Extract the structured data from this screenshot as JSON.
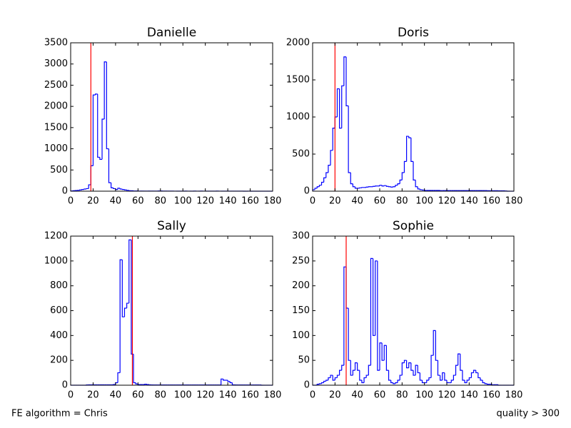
{
  "chart_data": [
    {
      "type": "histogram",
      "title": "Danielle",
      "color": "#0000ff",
      "bins": [
        0,
        2,
        4,
        6,
        8,
        10,
        12,
        14,
        16,
        18,
        20,
        22,
        24,
        26,
        28,
        30,
        32,
        34,
        36,
        38,
        40,
        42,
        44,
        46,
        48,
        50,
        52,
        54,
        56,
        58,
        60,
        62,
        64,
        66,
        68,
        70,
        72,
        74,
        76,
        78,
        80,
        82,
        84,
        86,
        88,
        90,
        92,
        94,
        96,
        98,
        100,
        102,
        104,
        106,
        108,
        110,
        112,
        114,
        116,
        118,
        120,
        122,
        124,
        126,
        128,
        130,
        132,
        134,
        136,
        138,
        140,
        142,
        144,
        146,
        148,
        150,
        152,
        154,
        156,
        158,
        160,
        162,
        164,
        166,
        168,
        170,
        172,
        174,
        176,
        178,
        180
      ],
      "counts": [
        5,
        10,
        15,
        20,
        30,
        40,
        50,
        60,
        150,
        600,
        2270,
        2290,
        800,
        750,
        1700,
        3050,
        1000,
        200,
        80,
        60,
        40,
        70,
        50,
        40,
        30,
        20,
        10,
        10,
        5,
        5,
        3,
        3,
        2,
        2,
        2,
        3,
        2,
        2,
        2,
        5,
        5,
        3,
        2,
        2,
        2,
        2,
        1,
        1,
        1,
        1,
        1,
        2,
        1,
        1,
        1,
        2,
        1,
        1,
        2,
        1,
        1,
        1,
        1,
        1,
        1,
        2,
        1,
        1,
        1,
        1,
        1,
        1,
        1,
        1,
        1,
        1,
        1,
        0,
        0,
        1,
        0,
        0,
        0,
        0,
        0,
        0,
        0,
        0,
        0,
        0
      ],
      "vline": {
        "value": 18,
        "color": "#ff0000"
      },
      "xlim": [
        0,
        180
      ],
      "xticks": [
        0,
        20,
        40,
        60,
        80,
        100,
        120,
        140,
        160,
        180
      ],
      "ylim": [
        0,
        3500
      ],
      "yticks": [
        0,
        500,
        1000,
        1500,
        2000,
        2500,
        3000,
        3500
      ]
    },
    {
      "type": "histogram",
      "title": "Doris",
      "color": "#0000ff",
      "bins": [
        0,
        2,
        4,
        6,
        8,
        10,
        12,
        14,
        16,
        18,
        20,
        22,
        24,
        26,
        28,
        30,
        32,
        34,
        36,
        38,
        40,
        42,
        44,
        46,
        48,
        50,
        52,
        54,
        56,
        58,
        60,
        62,
        64,
        66,
        68,
        70,
        72,
        74,
        76,
        78,
        80,
        82,
        84,
        86,
        88,
        90,
        92,
        94,
        96,
        98,
        100,
        102,
        104,
        106,
        108,
        110,
        112,
        114,
        116,
        118,
        120,
        122,
        124,
        126,
        128,
        130,
        132,
        134,
        136,
        138,
        140,
        142,
        144,
        146,
        148,
        150,
        152,
        154,
        156,
        158,
        160,
        162,
        164,
        166,
        168,
        170,
        172,
        174,
        176,
        178,
        180
      ],
      "counts": [
        20,
        40,
        60,
        80,
        120,
        180,
        250,
        350,
        550,
        850,
        1000,
        1380,
        850,
        1420,
        1810,
        1150,
        250,
        100,
        60,
        40,
        40,
        45,
        50,
        50,
        55,
        60,
        60,
        65,
        70,
        70,
        80,
        70,
        75,
        65,
        60,
        55,
        60,
        80,
        100,
        150,
        250,
        400,
        740,
        720,
        400,
        150,
        60,
        30,
        20,
        15,
        10,
        10,
        10,
        10,
        10,
        10,
        10,
        8,
        8,
        8,
        8,
        8,
        8,
        8,
        8,
        8,
        8,
        8,
        8,
        8,
        8,
        8,
        8,
        8,
        8,
        8,
        8,
        8,
        6,
        6,
        6,
        6,
        6,
        5,
        5,
        5,
        3,
        0,
        0,
        0
      ],
      "vline": {
        "value": 20,
        "color": "#ff0000"
      },
      "xlim": [
        0,
        180
      ],
      "xticks": [
        0,
        20,
        40,
        60,
        80,
        100,
        120,
        140,
        160,
        180
      ],
      "ylim": [
        0,
        2000
      ],
      "yticks": [
        0,
        500,
        1000,
        1500,
        2000
      ]
    },
    {
      "type": "histogram",
      "title": "Sally",
      "color": "#0000ff",
      "bins": [
        0,
        2,
        4,
        6,
        8,
        10,
        12,
        14,
        16,
        18,
        20,
        22,
        24,
        26,
        28,
        30,
        32,
        34,
        36,
        38,
        40,
        42,
        44,
        46,
        48,
        50,
        52,
        54,
        56,
        58,
        60,
        62,
        64,
        66,
        68,
        70,
        72,
        74,
        76,
        78,
        80,
        82,
        84,
        86,
        88,
        90,
        92,
        94,
        96,
        98,
        100,
        102,
        104,
        106,
        108,
        110,
        112,
        114,
        116,
        118,
        120,
        122,
        124,
        126,
        128,
        130,
        132,
        134,
        136,
        138,
        140,
        142,
        144,
        146,
        148,
        150,
        152,
        154,
        156,
        158,
        160,
        162,
        164,
        166,
        168,
        170,
        172,
        174,
        176,
        178,
        180
      ],
      "counts": [
        0,
        0,
        0,
        0,
        0,
        0,
        0,
        2,
        3,
        3,
        3,
        3,
        3,
        3,
        3,
        3,
        3,
        3,
        3,
        5,
        20,
        100,
        1010,
        550,
        620,
        660,
        1170,
        250,
        20,
        10,
        5,
        5,
        5,
        8,
        5,
        3,
        2,
        2,
        2,
        2,
        2,
        2,
        2,
        2,
        2,
        2,
        2,
        2,
        2,
        2,
        2,
        2,
        2,
        2,
        2,
        2,
        2,
        2,
        2,
        2,
        2,
        2,
        2,
        2,
        2,
        2,
        2,
        50,
        40,
        40,
        30,
        20,
        3,
        2,
        2,
        2,
        2,
        2,
        2,
        2,
        2,
        2,
        2,
        2,
        2,
        0,
        0,
        0,
        0,
        0
      ],
      "vline": {
        "value": 55,
        "color": "#ff0000"
      },
      "xlim": [
        0,
        180
      ],
      "xticks": [
        0,
        20,
        40,
        60,
        80,
        100,
        120,
        140,
        160,
        180
      ],
      "ylim": [
        0,
        1200
      ],
      "yticks": [
        0,
        200,
        400,
        600,
        800,
        1000,
        1200
      ]
    },
    {
      "type": "histogram",
      "title": "Sophie",
      "color": "#0000ff",
      "bins": [
        0,
        2,
        4,
        6,
        8,
        10,
        12,
        14,
        16,
        18,
        20,
        22,
        24,
        26,
        28,
        30,
        32,
        34,
        36,
        38,
        40,
        42,
        44,
        46,
        48,
        50,
        52,
        54,
        56,
        58,
        60,
        62,
        64,
        66,
        68,
        70,
        72,
        74,
        76,
        78,
        80,
        82,
        84,
        86,
        88,
        90,
        92,
        94,
        96,
        98,
        100,
        102,
        104,
        106,
        108,
        110,
        112,
        114,
        116,
        118,
        120,
        122,
        124,
        126,
        128,
        130,
        132,
        134,
        136,
        138,
        140,
        142,
        144,
        146,
        148,
        150,
        152,
        154,
        156,
        158,
        160,
        162,
        164,
        166,
        168,
        170,
        172,
        174,
        176,
        178,
        180
      ],
      "counts": [
        0,
        0,
        2,
        3,
        5,
        8,
        10,
        15,
        20,
        10,
        15,
        20,
        30,
        40,
        238,
        155,
        50,
        20,
        30,
        45,
        30,
        10,
        5,
        15,
        20,
        40,
        255,
        100,
        250,
        30,
        85,
        50,
        80,
        30,
        10,
        5,
        3,
        5,
        10,
        20,
        45,
        50,
        35,
        45,
        30,
        20,
        40,
        25,
        10,
        5,
        5,
        10,
        15,
        60,
        110,
        50,
        20,
        10,
        25,
        10,
        5,
        5,
        10,
        20,
        40,
        63,
        30,
        10,
        5,
        10,
        15,
        25,
        30,
        25,
        15,
        10,
        5,
        3,
        2,
        2,
        1,
        1,
        1,
        0,
        0,
        0,
        0,
        0,
        0,
        0
      ],
      "vline": {
        "value": 30,
        "color": "#ff0000"
      },
      "xlim": [
        0,
        180
      ],
      "xticks": [
        0,
        20,
        40,
        60,
        80,
        100,
        120,
        140,
        160,
        180
      ],
      "ylim": [
        0,
        300
      ],
      "yticks": [
        0,
        50,
        100,
        150,
        200,
        250,
        300
      ]
    }
  ],
  "footnotes": [
    "FE algorithm = Chris",
    "quality > 300"
  ]
}
